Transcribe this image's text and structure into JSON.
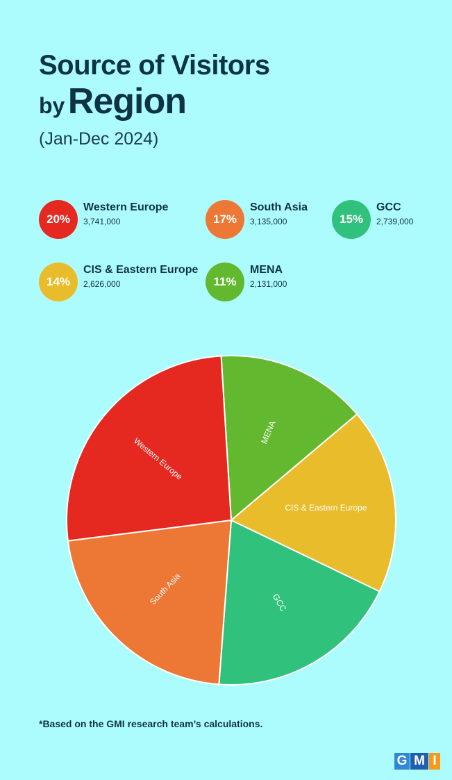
{
  "title": {
    "line1": "Source of Visitors",
    "line2_prefix": "by",
    "line2_main": "Region",
    "subtitle": "(Jan-Dec 2024)"
  },
  "legend": [
    {
      "percent": "20%",
      "name": "Western Europe",
      "value": "3,741,000",
      "color": "#e52820"
    },
    {
      "percent": "17%",
      "name": "South Asia",
      "value": "3,135,000",
      "color": "#ed7836"
    },
    {
      "percent": "15%",
      "name": "GCC",
      "value": "2,739,000",
      "color": "#30c27d"
    },
    {
      "percent": "14%",
      "name": "CIS & Eastern Europe",
      "value": "2,626,000",
      "color": "#e8bc2a"
    },
    {
      "percent": "11%",
      "name": "MENA",
      "value": "2,131,000",
      "color": "#62b82e"
    }
  ],
  "chart_data": {
    "type": "pie",
    "title": "Source of Visitors by Region",
    "subtitle": "(Jan-Dec 2024)",
    "slices": [
      {
        "label": "MENA",
        "value": 2131000,
        "percent": 11,
        "color": "#62b82e"
      },
      {
        "label": "CIS & Eastern Europe",
        "value": 2626000,
        "percent": 14,
        "color": "#e8bc2a"
      },
      {
        "label": "GCC",
        "value": 2739000,
        "percent": 15,
        "color": "#30c27d"
      },
      {
        "label": "South Asia",
        "value": 3135000,
        "percent": 17,
        "color": "#ed7836"
      },
      {
        "label": "Western Europe",
        "value": 3741000,
        "percent": 20,
        "color": "#e52820"
      }
    ]
  },
  "footnote": "*Based on the GMI research team’s calculations.",
  "logo": {
    "g": "G",
    "m": "M",
    "i": "I"
  }
}
